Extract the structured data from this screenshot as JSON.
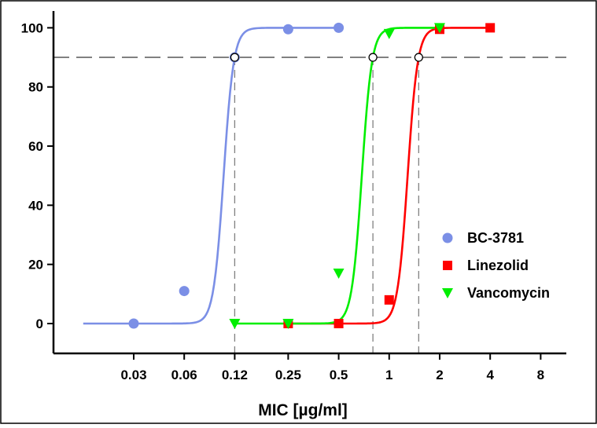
{
  "chart_data": {
    "type": "scatter",
    "title": "",
    "xlabel": "MIC [µg/ml]",
    "ylabel": "",
    "x_scale": "log2",
    "xlim": [
      0.0125,
      8
    ],
    "ylim": [
      -10,
      105
    ],
    "x_ticks": [
      0.03,
      0.06,
      0.12,
      0.25,
      0.5,
      1,
      2,
      4,
      8
    ],
    "x_tick_labels": [
      "0.03",
      "0.06",
      "0.12",
      "0.25",
      "0.5",
      "1",
      "2",
      "4",
      "8"
    ],
    "y_ticks": [
      0,
      20,
      40,
      60,
      80,
      100
    ],
    "y_tick_labels": [
      "0",
      "20",
      "40",
      "60",
      "80",
      "100"
    ],
    "grid": false,
    "legend_position": "right",
    "reference_line": {
      "y": 90,
      "style": "dashed",
      "color": "#808080"
    },
    "series": [
      {
        "name": "BC-3781",
        "marker": "circle",
        "color": "#7b8fe6",
        "x": [
          0.03,
          0.06,
          0.12,
          0.25,
          0.5
        ],
        "y": [
          0,
          11,
          90,
          99.5,
          100
        ],
        "ec90": 0.12,
        "fit_start_x": 0.015
      },
      {
        "name": "Linezolid",
        "marker": "square",
        "color": "#ff0000",
        "x": [
          0.25,
          0.5,
          1,
          2,
          4
        ],
        "y": [
          0,
          0,
          8,
          99.5,
          100
        ],
        "ec90": 1.5,
        "fit_start_x": 0.25
      },
      {
        "name": "Vancomycin",
        "marker": "triangle-down",
        "color": "#00ee00",
        "x": [
          0.12,
          0.25,
          0.5,
          1,
          2
        ],
        "y": [
          0,
          0,
          17,
          98,
          100
        ],
        "ec90": 0.8,
        "fit_start_x": 0.12
      }
    ]
  }
}
